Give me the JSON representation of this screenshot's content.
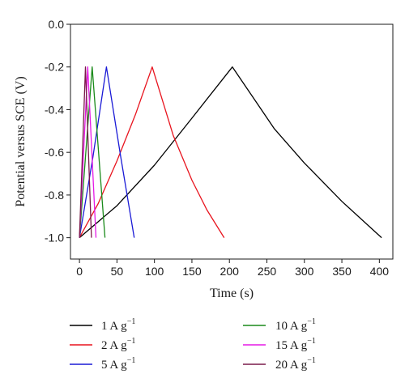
{
  "chart_data": {
    "type": "line",
    "xlabel": "Time (s)",
    "ylabel": "Potential versus SCE (V)",
    "xlim": [
      -12,
      418
    ],
    "ylim": [
      -1.1,
      0.0
    ],
    "xticks": [
      0,
      50,
      100,
      150,
      200,
      250,
      300,
      350,
      400
    ],
    "yticks": [
      0.0,
      -0.2,
      -0.4,
      -0.6,
      -0.8,
      -1.0
    ],
    "xtick_labels": [
      "0",
      "50",
      "100",
      "150",
      "200",
      "250",
      "300",
      "350",
      "400"
    ],
    "ytick_labels": [
      "0.0",
      "-0.2",
      "-0.4",
      "-0.6",
      "-0.8",
      "-1.0"
    ],
    "grid": false,
    "legend_position": "bottom",
    "series": [
      {
        "name": "1 A g",
        "superscript": "−1",
        "color": "#000000",
        "x": [
          0,
          50,
          100,
          150,
          204,
          260,
          300,
          350,
          403
        ],
        "y": [
          -1.0,
          -0.85,
          -0.66,
          -0.44,
          -0.2,
          -0.49,
          -0.65,
          -0.83,
          -1.0
        ]
      },
      {
        "name": "2 A g",
        "superscript": "−1",
        "color": "#e8141e",
        "x": [
          0,
          25,
          50,
          75,
          97,
          125,
          150,
          170,
          193
        ],
        "y": [
          -1.0,
          -0.84,
          -0.64,
          -0.42,
          -0.2,
          -0.52,
          -0.73,
          -0.87,
          -1.0
        ]
      },
      {
        "name": "5 A g",
        "superscript": "−1",
        "color": "#1a1ad6",
        "x": [
          0,
          18,
          36,
          55,
          73
        ],
        "y": [
          -1.0,
          -0.62,
          -0.2,
          -0.62,
          -1.0
        ]
      },
      {
        "name": "10 A g",
        "superscript": "−1",
        "color": "#1a8a1a",
        "x": [
          0,
          17,
          34
        ],
        "y": [
          -1.0,
          -0.2,
          -1.0
        ]
      },
      {
        "name": "15 A g",
        "superscript": "−1",
        "color": "#e61ae6",
        "x": [
          0,
          11,
          22
        ],
        "y": [
          -1.0,
          -0.2,
          -1.0
        ]
      },
      {
        "name": "20 A g",
        "superscript": "−1",
        "color": "#7a1a4a",
        "x": [
          0,
          8,
          16
        ],
        "y": [
          -1.0,
          -0.2,
          -1.0
        ]
      }
    ]
  }
}
